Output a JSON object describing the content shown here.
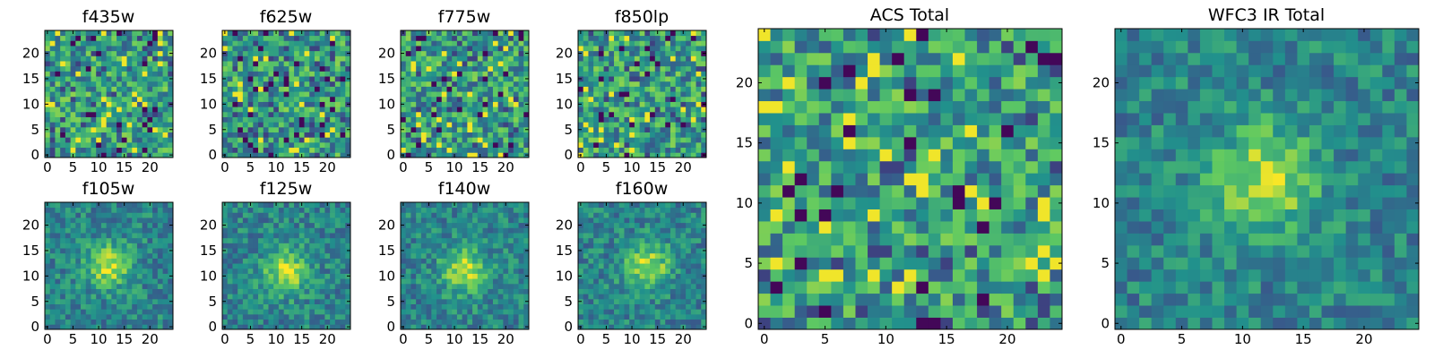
{
  "figure": {
    "colormap": "viridis",
    "colormap_stops": [
      "#440154",
      "#3b528b",
      "#21918c",
      "#5ec962",
      "#fde725"
    ],
    "axis_color": "#000000",
    "background": "#ffffff"
  },
  "chart_data": [
    {
      "type": "heatmap",
      "title": "f435w",
      "grid_size": [
        25,
        25
      ],
      "xlim": [
        -0.5,
        24.5
      ],
      "ylim": [
        -0.5,
        24.5
      ],
      "xticks": [
        0,
        5,
        10,
        15,
        20
      ],
      "yticks": [
        0,
        5,
        10,
        15,
        20
      ],
      "pattern": "noise",
      "seed": 11,
      "grid": false
    },
    {
      "type": "heatmap",
      "title": "f625w",
      "grid_size": [
        25,
        25
      ],
      "xlim": [
        -0.5,
        24.5
      ],
      "ylim": [
        -0.5,
        24.5
      ],
      "xticks": [
        0,
        5,
        10,
        15,
        20
      ],
      "yticks": [
        0,
        5,
        10,
        15,
        20
      ],
      "pattern": "noise",
      "seed": 23,
      "grid": false
    },
    {
      "type": "heatmap",
      "title": "f775w",
      "grid_size": [
        25,
        25
      ],
      "xlim": [
        -0.5,
        24.5
      ],
      "ylim": [
        -0.5,
        24.5
      ],
      "xticks": [
        0,
        5,
        10,
        15,
        20
      ],
      "yticks": [
        0,
        5,
        10,
        15,
        20
      ],
      "pattern": "noise",
      "seed": 37,
      "grid": false
    },
    {
      "type": "heatmap",
      "title": "f850lp",
      "grid_size": [
        25,
        25
      ],
      "xlim": [
        -0.5,
        24.5
      ],
      "ylim": [
        -0.5,
        24.5
      ],
      "xticks": [
        0,
        5,
        10,
        15,
        20
      ],
      "yticks": [
        0,
        5,
        10,
        15,
        20
      ],
      "pattern": "noise",
      "seed": 41,
      "grid": false
    },
    {
      "type": "heatmap",
      "title": "f105w",
      "grid_size": [
        25,
        25
      ],
      "xlim": [
        -0.5,
        24.5
      ],
      "ylim": [
        -0.5,
        24.5
      ],
      "xticks": [
        0,
        5,
        10,
        15,
        20
      ],
      "yticks": [
        0,
        5,
        10,
        15,
        20
      ],
      "pattern": "source",
      "source_center": [
        12,
        12
      ],
      "seed": 53,
      "grid": false
    },
    {
      "type": "heatmap",
      "title": "f125w",
      "grid_size": [
        25,
        25
      ],
      "xlim": [
        -0.5,
        24.5
      ],
      "ylim": [
        -0.5,
        24.5
      ],
      "xticks": [
        0,
        5,
        10,
        15,
        20
      ],
      "yticks": [
        0,
        5,
        10,
        15,
        20
      ],
      "pattern": "source",
      "source_center": [
        12,
        11
      ],
      "seed": 67,
      "grid": false
    },
    {
      "type": "heatmap",
      "title": "f140w",
      "grid_size": [
        25,
        25
      ],
      "xlim": [
        -0.5,
        24.5
      ],
      "ylim": [
        -0.5,
        24.5
      ],
      "xticks": [
        0,
        5,
        10,
        15,
        20
      ],
      "yticks": [
        0,
        5,
        10,
        15,
        20
      ],
      "pattern": "source",
      "source_center": [
        12,
        11
      ],
      "seed": 79,
      "grid": false
    },
    {
      "type": "heatmap",
      "title": "f160w",
      "grid_size": [
        25,
        25
      ],
      "xlim": [
        -0.5,
        24.5
      ],
      "ylim": [
        -0.5,
        24.5
      ],
      "xticks": [
        0,
        5,
        10,
        15,
        20
      ],
      "yticks": [
        0,
        5,
        10,
        15,
        20
      ],
      "pattern": "source",
      "source_center": [
        13,
        12
      ],
      "seed": 83,
      "grid": false
    },
    {
      "type": "heatmap",
      "title": "ACS Total",
      "grid_size": [
        25,
        25
      ],
      "xlim": [
        -0.5,
        24.5
      ],
      "ylim": [
        -0.5,
        24.5
      ],
      "xticks": [
        0,
        5,
        10,
        15,
        20
      ],
      "yticks": [
        0,
        5,
        10,
        15,
        20
      ],
      "pattern": "noise",
      "seed": 97,
      "grid": false
    },
    {
      "type": "heatmap",
      "title": "WFC3 IR Total",
      "grid_size": [
        25,
        25
      ],
      "xlim": [
        -0.5,
        24.5
      ],
      "ylim": [
        -0.5,
        24.5
      ],
      "xticks": [
        0,
        5,
        10,
        15,
        20
      ],
      "yticks": [
        0,
        5,
        10,
        15,
        20
      ],
      "pattern": "source",
      "source_center": [
        12,
        12
      ],
      "seed": 101,
      "grid": false
    }
  ]
}
